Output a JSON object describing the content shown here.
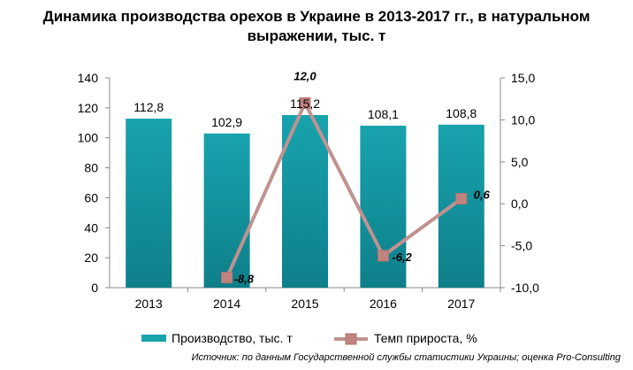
{
  "title_line1": "Динамика производства орехов в Украине в 2013-2017 гг., в натуральном",
  "title_line2": "выражении, тыс. т",
  "source": "Источник: по данным Государственной службы статистики Украины; оценка Pro-Consulting",
  "colors": {
    "bars": "#18a3ad",
    "line": "#c09290",
    "marker": "#c0837f",
    "axis": "#888888",
    "text": "#000000"
  },
  "chart_data": {
    "type": "bar",
    "categories": [
      "2013",
      "2014",
      "2015",
      "2016",
      "2017"
    ],
    "series": [
      {
        "name": "Производство, тыс. т",
        "type": "bar",
        "axis": "left",
        "values": [
          112.8,
          102.9,
          115.2,
          108.1,
          108.8
        ],
        "labels": [
          "112,8",
          "102,9",
          "115,2",
          "108,1",
          "108,8"
        ]
      },
      {
        "name": "Темп прироста, %",
        "type": "line",
        "axis": "right",
        "x": [
          "2014",
          "2015",
          "2016",
          "2017"
        ],
        "values": [
          -8.8,
          12.0,
          -6.2,
          0.6
        ],
        "labels": [
          "-8,8",
          "12,0",
          "-6,2",
          "0,6"
        ]
      }
    ],
    "y_left": {
      "min": 0,
      "max": 140,
      "ticks": [
        "0",
        "20",
        "40",
        "60",
        "80",
        "100",
        "120",
        "140"
      ]
    },
    "y_right": {
      "min": -10,
      "max": 15,
      "ticks": [
        "-10,0",
        "-5,0",
        "0,0",
        "5,0",
        "10,0",
        "15,0"
      ]
    },
    "grid": false,
    "legend_position": "bottom"
  }
}
